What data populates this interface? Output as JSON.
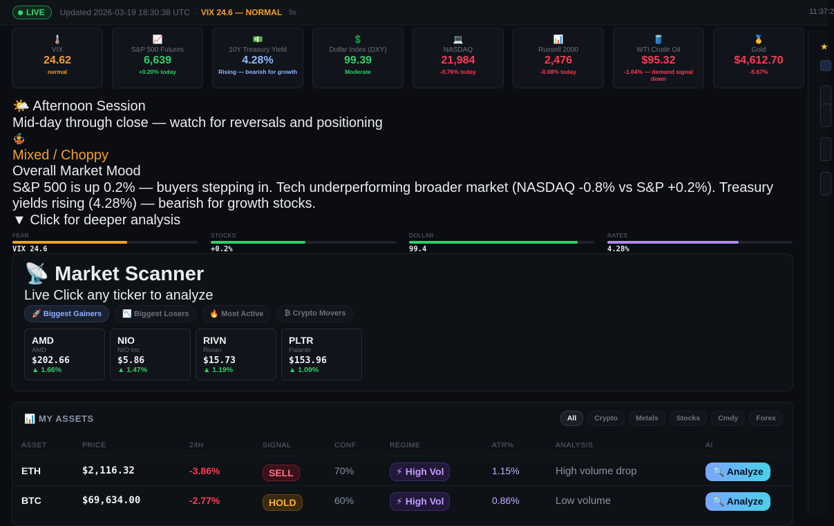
{
  "topbar": {
    "live": "LIVE",
    "updated": "Updated 2026-03-19 18:30:38 UTC",
    "separator": "·",
    "vix_status": "VIX 24.6 — NORMAL",
    "refresh": "5s",
    "clock": "11:37:2"
  },
  "cards": [
    {
      "icon": "🌡️",
      "label": "VIX",
      "value": "24.62",
      "sub": "normal",
      "color": "orange"
    },
    {
      "icon": "📈",
      "label": "S&P 500 Futures",
      "value": "6,639",
      "sub": "+0.20% today",
      "color": "green"
    },
    {
      "icon": "💵",
      "label": "10Y Treasury Yield",
      "value": "4.28%",
      "sub": "Rising — bearish for growth",
      "color": "blue"
    },
    {
      "icon": "💲",
      "label": "Dollar Index (DXY)",
      "value": "99.39",
      "sub": "Moderate",
      "color": "green"
    },
    {
      "icon": "💻",
      "label": "NASDAQ",
      "value": "21,984",
      "sub": "-0.76% today",
      "color": "red"
    },
    {
      "icon": "📊",
      "label": "Russell 2000",
      "value": "2,476",
      "sub": "-0.08% today",
      "color": "red"
    },
    {
      "icon": "🛢️",
      "label": "WTI Crude Oil",
      "value": "$95.32",
      "sub": "-1.04% — demand signal down",
      "color": "red"
    },
    {
      "icon": "🥇",
      "label": "Gold",
      "value": "$4,612.70",
      "sub": "-5.67%",
      "color": "red"
    }
  ],
  "session": {
    "icon": "🌤️",
    "title": "Afternoon Session",
    "subtitle": "Mid-day through close — watch for reversals and positioning",
    "mood_icon": "🤹",
    "mood": "Mixed / Choppy",
    "mood_label": "Overall Market Mood",
    "summary": "S&P 500 is up 0.2% — buyers stepping in. Tech underperforming broader market (NASDAQ -0.8% vs S&P +0.2%). Treasury yields rising (4.28%) — bearish for growth stocks.",
    "deeper": "▼ Click for deeper analysis"
  },
  "gauges": [
    {
      "label": "FEAR",
      "value": "VIX 24.6",
      "fill_pct": 62,
      "color": "#f59e2a"
    },
    {
      "label": "STOCKS",
      "value": "+0.2%",
      "fill_pct": 51,
      "color": "#2fd06a"
    },
    {
      "label": "DOLLAR",
      "value": "99.4",
      "fill_pct": 91,
      "color": "#2fd06a"
    },
    {
      "label": "RATES",
      "value": "4.28%",
      "fill_pct": 71,
      "color": "#b088ff"
    }
  ],
  "scanner": {
    "icon": "📡",
    "title": "Market Scanner",
    "subtitle": "Live Click any ticker to analyze",
    "tabs": [
      "🚀 Biggest Gainers",
      "📉 Biggest Losers",
      "🔥 Most Active",
      "₿ Crypto Movers"
    ],
    "active_tab": 0,
    "movers": [
      {
        "symbol": "AMD",
        "name": "AMD",
        "price": "$202.66",
        "change": "▲ 1.66%"
      },
      {
        "symbol": "NIO",
        "name": "NIO Inc",
        "price": "$5.86",
        "change": "▲ 1.47%"
      },
      {
        "symbol": "RIVN",
        "name": "Rivian",
        "price": "$15.73",
        "change": "▲ 1.19%"
      },
      {
        "symbol": "PLTR",
        "name": "Palantir",
        "price": "$153.96",
        "change": "▲ 1.09%"
      }
    ]
  },
  "assets": {
    "title": "📊 MY ASSETS",
    "filters": [
      "All",
      "Crypto",
      "Metals",
      "Stocks",
      "Cmdy",
      "Forex"
    ],
    "active_filter": 0,
    "columns": [
      "ASSET",
      "PRICE",
      "24H",
      "SIGNAL",
      "CONF",
      "REGIME",
      "ATR%",
      "ANALYSIS",
      "AI"
    ],
    "rows": [
      {
        "asset": "ETH",
        "price": "$2,116.32",
        "change": "-3.86%",
        "signal": "SELL",
        "conf": "70%",
        "regime": "⚡ High Vol",
        "atr": "1.15%",
        "analysis": "High volume drop",
        "ai": "🔍 Analyze"
      },
      {
        "asset": "BTC",
        "price": "$69,634.00",
        "change": "-2.77%",
        "signal": "HOLD",
        "conf": "60%",
        "regime": "⚡ High Vol",
        "atr": "0.86%",
        "analysis": "Low volume",
        "ai": "🔍 Analyze"
      }
    ]
  },
  "rail": {
    "star": "★"
  }
}
